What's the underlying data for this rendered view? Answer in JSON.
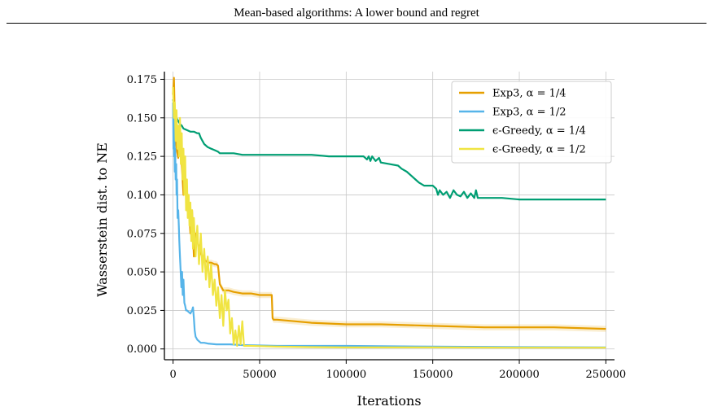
{
  "header": {
    "title": "Mean-based algorithms: A lower bound and regret"
  },
  "chart_data": {
    "type": "line",
    "title": "",
    "xlabel": "Iterations",
    "ylabel": "Wasserstein dist. to NE",
    "xlim": [
      -5000,
      255000
    ],
    "ylim": [
      -0.007,
      0.18
    ],
    "xticks": [
      0,
      50000,
      100000,
      150000,
      200000,
      250000
    ],
    "xtick_labels": [
      "0",
      "50000",
      "100000",
      "150000",
      "200000",
      "250000"
    ],
    "yticks": [
      0.0,
      0.025,
      0.05,
      0.075,
      0.1,
      0.125,
      0.15,
      0.175
    ],
    "ytick_labels": [
      "0.000",
      "0.025",
      "0.050",
      "0.075",
      "0.100",
      "0.125",
      "0.150",
      "0.175"
    ],
    "grid": true,
    "legend_position": "top-right",
    "series": [
      {
        "name": "Exp3, α = 1/4",
        "color": "#E69F00",
        "x": [
          0,
          500,
          1000,
          1500,
          2000,
          3000,
          4000,
          5000,
          6000,
          7000,
          8000,
          9000,
          10000,
          11000,
          12000,
          13000,
          14000,
          16000,
          18000,
          20000,
          22000,
          24000,
          25000,
          26000,
          27000,
          28000,
          29000,
          30000,
          32000,
          35000,
          40000,
          45000,
          50000,
          55000,
          57000,
          57500,
          58000,
          60000,
          70000,
          80000,
          100000,
          120000,
          150000,
          180000,
          200000,
          220000,
          250000
        ],
        "values": [
          0.165,
          0.176,
          0.15,
          0.14,
          0.13,
          0.124,
          0.145,
          0.12,
          0.1,
          0.11,
          0.09,
          0.095,
          0.075,
          0.09,
          0.06,
          0.075,
          0.07,
          0.062,
          0.058,
          0.056,
          0.056,
          0.055,
          0.055,
          0.054,
          0.042,
          0.04,
          0.038,
          0.038,
          0.038,
          0.037,
          0.036,
          0.036,
          0.035,
          0.035,
          0.035,
          0.02,
          0.019,
          0.019,
          0.018,
          0.017,
          0.016,
          0.016,
          0.015,
          0.014,
          0.014,
          0.014,
          0.013
        ]
      },
      {
        "name": "Exp3, α = 1/2",
        "color": "#56B4E9",
        "x": [
          0,
          200,
          400,
          600,
          800,
          1000,
          1200,
          1500,
          1800,
          2000,
          2300,
          2600,
          3000,
          3300,
          3600,
          4000,
          4400,
          4800,
          5200,
          5600,
          6000,
          6500,
          7000,
          7500,
          8000,
          9000,
          10000,
          11000,
          11500,
          12000,
          12500,
          13000,
          14000,
          15000,
          16000,
          18000,
          20000,
          25000,
          30000,
          33000,
          40000,
          60000,
          80000,
          100000,
          150000,
          200000,
          250000
        ],
        "values": [
          0.16,
          0.13,
          0.15,
          0.125,
          0.14,
          0.115,
          0.13,
          0.11,
          0.12,
          0.1,
          0.11,
          0.085,
          0.09,
          0.08,
          0.07,
          0.06,
          0.05,
          0.04,
          0.05,
          0.035,
          0.045,
          0.03,
          0.028,
          0.025,
          0.025,
          0.024,
          0.023,
          0.025,
          0.027,
          0.02,
          0.012,
          0.008,
          0.006,
          0.005,
          0.004,
          0.004,
          0.0035,
          0.003,
          0.003,
          0.003,
          0.0025,
          0.002,
          0.002,
          0.002,
          0.0015,
          0.0012,
          0.001
        ]
      },
      {
        "name": "ϵ-Greedy, α = 1/4",
        "color": "#009E73",
        "x": [
          0,
          1000,
          2000,
          3000,
          4000,
          5000,
          6000,
          8000,
          10000,
          12000,
          14000,
          15000,
          16000,
          17000,
          18000,
          20000,
          22000,
          24000,
          26000,
          27000,
          28000,
          30000,
          35000,
          40000,
          50000,
          60000,
          70000,
          80000,
          90000,
          100000,
          110000,
          112000,
          113000,
          114000,
          115000,
          117000,
          119000,
          120000,
          125000,
          130000,
          132000,
          135000,
          138000,
          140000,
          142000,
          145000,
          150000,
          152000,
          153000,
          154000,
          156000,
          158000,
          160000,
          162000,
          164000,
          166000,
          168000,
          170000,
          172000,
          174000,
          175000,
          176000,
          180000,
          190000,
          200000,
          220000,
          250000
        ],
        "values": [
          0.162,
          0.155,
          0.15,
          0.148,
          0.146,
          0.145,
          0.143,
          0.142,
          0.141,
          0.141,
          0.14,
          0.14,
          0.137,
          0.135,
          0.133,
          0.131,
          0.13,
          0.129,
          0.128,
          0.127,
          0.127,
          0.127,
          0.127,
          0.126,
          0.126,
          0.126,
          0.126,
          0.126,
          0.125,
          0.125,
          0.125,
          0.123,
          0.125,
          0.122,
          0.125,
          0.122,
          0.124,
          0.121,
          0.12,
          0.119,
          0.117,
          0.115,
          0.112,
          0.11,
          0.108,
          0.106,
          0.106,
          0.104,
          0.1,
          0.103,
          0.1,
          0.102,
          0.098,
          0.103,
          0.1,
          0.099,
          0.102,
          0.098,
          0.101,
          0.098,
          0.103,
          0.098,
          0.098,
          0.098,
          0.097,
          0.097,
          0.097
        ]
      },
      {
        "name": "ϵ-Greedy, α = 1/2",
        "color": "#F0E442",
        "x": [
          0,
          500,
          1000,
          1500,
          2000,
          2500,
          3000,
          3500,
          4000,
          4500,
          5000,
          5500,
          6000,
          6500,
          7000,
          7500,
          8000,
          8500,
          9000,
          9500,
          10000,
          10500,
          11000,
          11500,
          12000,
          13000,
          14000,
          15000,
          16000,
          17000,
          18000,
          19000,
          20000,
          21000,
          22000,
          23000,
          24000,
          25000,
          26000,
          27000,
          28000,
          29000,
          30000,
          31000,
          32000,
          33000,
          34000,
          35000,
          36000,
          37000,
          38000,
          39000,
          40000,
          41000,
          45000,
          50000,
          60000,
          80000,
          100000,
          150000,
          200000,
          250000
        ],
        "values": [
          0.17,
          0.15,
          0.16,
          0.135,
          0.155,
          0.13,
          0.145,
          0.125,
          0.15,
          0.12,
          0.14,
          0.11,
          0.13,
          0.1,
          0.125,
          0.09,
          0.11,
          0.085,
          0.1,
          0.08,
          0.095,
          0.07,
          0.09,
          0.065,
          0.085,
          0.06,
          0.08,
          0.055,
          0.075,
          0.05,
          0.065,
          0.045,
          0.06,
          0.04,
          0.055,
          0.035,
          0.045,
          0.028,
          0.04,
          0.02,
          0.035,
          0.015,
          0.038,
          0.025,
          0.032,
          0.01,
          0.02,
          0.003,
          0.012,
          0.002,
          0.015,
          0.003,
          0.018,
          0.002,
          0.002,
          0.0018,
          0.0015,
          0.0012,
          0.001,
          0.001,
          0.0008,
          0.0008
        ]
      }
    ]
  }
}
